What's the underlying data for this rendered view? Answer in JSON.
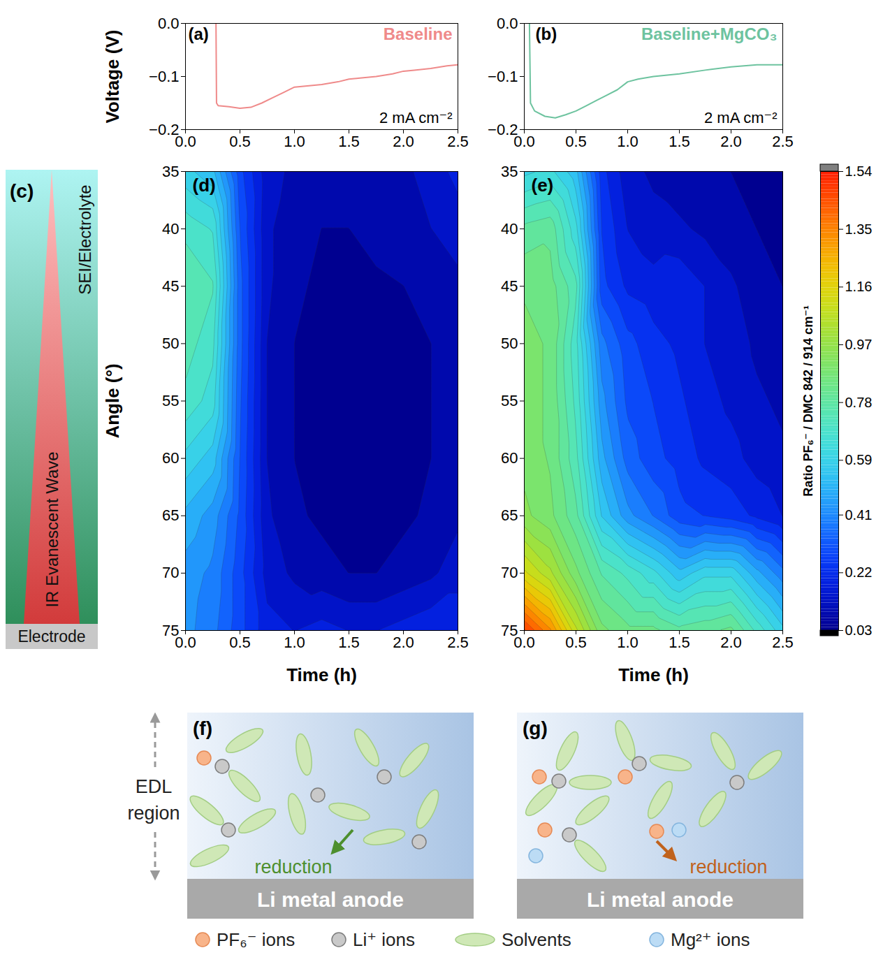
{
  "chart_data": [
    {
      "type": "line",
      "panel_label": "(a)",
      "title": "Baseline",
      "annotations": [
        "2 mA cm⁻²"
      ],
      "ylabel": "Voltage (V)",
      "color": "#ef8a8a",
      "x": [
        0.28,
        0.285,
        0.3,
        0.4,
        0.5,
        0.6,
        0.7,
        0.8,
        0.9,
        1.0,
        1.1,
        1.25,
        1.4,
        1.5,
        1.6,
        1.75,
        1.9,
        2.0,
        2.1,
        2.25,
        2.4,
        2.5
      ],
      "values": [
        0.0,
        -0.15,
        -0.155,
        -0.157,
        -0.16,
        -0.158,
        -0.15,
        -0.14,
        -0.13,
        -0.12,
        -0.118,
        -0.115,
        -0.11,
        -0.105,
        -0.103,
        -0.1,
        -0.095,
        -0.09,
        -0.088,
        -0.085,
        -0.08,
        -0.078
      ],
      "xlim": [
        0,
        2.5
      ],
      "xticks": [
        {
          "value": 0,
          "label": "0.0"
        },
        0.5,
        {
          "value": 1,
          "label": "1.0"
        },
        1.5,
        {
          "value": 2,
          "label": "2.0"
        },
        2.5
      ],
      "ylim": [
        -0.2,
        0
      ],
      "yticks": [
        {
          "value": 0,
          "label": "0.0"
        },
        {
          "value": -0.1,
          "label": "−0.1"
        },
        {
          "value": -0.2,
          "label": "−0.2"
        }
      ]
    },
    {
      "type": "line",
      "panel_label": "(b)",
      "title": "Baseline+MgCO₃",
      "annotations": [
        "2 mA cm⁻²"
      ],
      "color": "#6dc39f",
      "x": [
        0.05,
        0.06,
        0.1,
        0.2,
        0.3,
        0.4,
        0.5,
        0.6,
        0.7,
        0.8,
        0.9,
        1.0,
        1.1,
        1.25,
        1.5,
        1.75,
        2.0,
        2.25,
        2.5
      ],
      "values": [
        0.0,
        -0.15,
        -0.165,
        -0.175,
        -0.178,
        -0.172,
        -0.165,
        -0.155,
        -0.145,
        -0.135,
        -0.125,
        -0.11,
        -0.105,
        -0.1,
        -0.095,
        -0.088,
        -0.082,
        -0.078,
        -0.078
      ],
      "xlim": [
        0,
        2.5
      ],
      "xticks": [
        {
          "value": 0,
          "label": "0.0"
        },
        0.5,
        {
          "value": 1,
          "label": "1.0"
        },
        1.5,
        {
          "value": 2,
          "label": "2.0"
        },
        2.5
      ],
      "ylim": [
        -0.2,
        0
      ],
      "yticks": [
        {
          "value": 0,
          "label": "0.0"
        },
        {
          "value": -0.1,
          "label": "−0.1"
        },
        {
          "value": -0.2,
          "label": "−0.2"
        }
      ]
    },
    {
      "type": "heatmap",
      "panel_label": "(d)",
      "xlabel": "Time (h)",
      "ylabel": "Angle (°)",
      "x": [
        0,
        0.25,
        0.5,
        0.75,
        1.0,
        1.25,
        1.5,
        1.75,
        2.0,
        2.25,
        2.5
      ],
      "y": [
        35,
        40,
        45,
        50,
        55,
        60,
        65,
        70,
        75
      ],
      "values": [
        [
          0.6,
          0.55,
          0.3,
          0.15,
          0.12,
          0.1,
          0.1,
          0.12,
          0.12,
          0.15,
          0.2
        ],
        [
          0.72,
          0.68,
          0.33,
          0.14,
          0.1,
          0.08,
          0.08,
          0.1,
          0.1,
          0.13,
          0.15
        ],
        [
          0.78,
          0.74,
          0.35,
          0.14,
          0.09,
          0.07,
          0.06,
          0.07,
          0.08,
          0.1,
          0.12
        ],
        [
          0.76,
          0.7,
          0.35,
          0.13,
          0.08,
          0.06,
          0.04,
          0.04,
          0.06,
          0.08,
          0.1
        ],
        [
          0.72,
          0.66,
          0.34,
          0.13,
          0.08,
          0.06,
          0.04,
          0.04,
          0.06,
          0.08,
          0.1
        ],
        [
          0.62,
          0.56,
          0.33,
          0.13,
          0.08,
          0.06,
          0.05,
          0.05,
          0.06,
          0.08,
          0.1
        ],
        [
          0.52,
          0.46,
          0.32,
          0.14,
          0.09,
          0.07,
          0.05,
          0.05,
          0.07,
          0.09,
          0.12
        ],
        [
          0.46,
          0.42,
          0.3,
          0.16,
          0.12,
          0.1,
          0.08,
          0.08,
          0.1,
          0.12,
          0.16
        ],
        [
          0.45,
          0.4,
          0.3,
          0.2,
          0.18,
          0.2,
          0.18,
          0.18,
          0.2,
          0.22,
          0.22
        ]
      ],
      "xlim": [
        0,
        2.5
      ],
      "xticks": [
        {
          "value": 0,
          "label": "0.0"
        },
        0.5,
        {
          "value": 1,
          "label": "1.0"
        },
        1.5,
        {
          "value": 2,
          "label": "2.0"
        },
        2.5
      ],
      "ylim": [
        75,
        35
      ],
      "yticks": [
        35,
        40,
        45,
        50,
        55,
        60,
        65,
        70,
        75
      ]
    },
    {
      "type": "heatmap",
      "panel_label": "(e)",
      "xlabel": "Time (h)",
      "x": [
        0,
        0.25,
        0.5,
        0.75,
        1.0,
        1.25,
        1.5,
        1.75,
        2.0,
        2.25,
        2.5
      ],
      "y": [
        35,
        40,
        45,
        50,
        55,
        60,
        65,
        70,
        75
      ],
      "values": [
        [
          0.62,
          0.65,
          0.55,
          0.25,
          0.15,
          0.12,
          0.1,
          0.1,
          0.08,
          0.08,
          0.08
        ],
        [
          0.8,
          0.82,
          0.65,
          0.28,
          0.18,
          0.15,
          0.14,
          0.12,
          0.1,
          0.08,
          0.08
        ],
        [
          0.88,
          0.86,
          0.75,
          0.3,
          0.22,
          0.2,
          0.22,
          0.18,
          0.14,
          0.1,
          0.08
        ],
        [
          0.9,
          0.88,
          0.7,
          0.4,
          0.3,
          0.25,
          0.22,
          0.18,
          0.16,
          0.12,
          0.1
        ],
        [
          0.9,
          0.88,
          0.72,
          0.45,
          0.32,
          0.28,
          0.24,
          0.2,
          0.17,
          0.14,
          0.12
        ],
        [
          0.92,
          0.88,
          0.75,
          0.5,
          0.36,
          0.3,
          0.26,
          0.22,
          0.2,
          0.16,
          0.14
        ],
        [
          0.95,
          0.9,
          0.8,
          0.58,
          0.45,
          0.38,
          0.3,
          0.28,
          0.26,
          0.22,
          0.18
        ],
        [
          1.15,
          1.05,
          0.9,
          0.78,
          0.72,
          0.65,
          0.55,
          0.62,
          0.62,
          0.5,
          0.4
        ],
        [
          1.5,
          1.35,
          1.1,
          0.9,
          0.85,
          0.85,
          0.8,
          0.82,
          0.85,
          0.72,
          0.6
        ]
      ],
      "xlim": [
        0,
        2.5
      ],
      "xticks": [
        {
          "value": 0,
          "label": "0.0"
        },
        0.5,
        {
          "value": 1,
          "label": "1.0"
        },
        1.5,
        {
          "value": 2,
          "label": "2.0"
        },
        2.5
      ],
      "ylim": [
        75,
        35
      ],
      "yticks": [
        35,
        40,
        45,
        50,
        55,
        60,
        65,
        70,
        75
      ],
      "colorbar": {
        "label": "Ratio PF₆⁻ / DMC 842 / 914 cm⁻¹",
        "lim": [
          0.03,
          1.54
        ],
        "ticks": [
          0.03,
          0.22,
          0.41,
          0.59,
          0.78,
          0.97,
          1.16,
          1.35,
          1.54
        ]
      }
    }
  ],
  "panel_c": {
    "panel_label": "(c)",
    "top_label": "SEI/Electrolyte",
    "wave_label": "IR Evanescent Wave",
    "electrode_label": "Electrode"
  },
  "panels_fg": {
    "side_label": "EDL region",
    "panels": [
      {
        "panel_label": "(f)",
        "arrow_label": "reduction",
        "anode_label": "Li metal anode"
      },
      {
        "panel_label": "(g)",
        "arrow_label": "reduction",
        "anode_label": "Li metal anode"
      }
    ],
    "key_items": [
      "PF₆⁻ ions",
      "Li⁺ ions",
      "Solvents",
      "Mg²⁺ ions"
    ]
  }
}
